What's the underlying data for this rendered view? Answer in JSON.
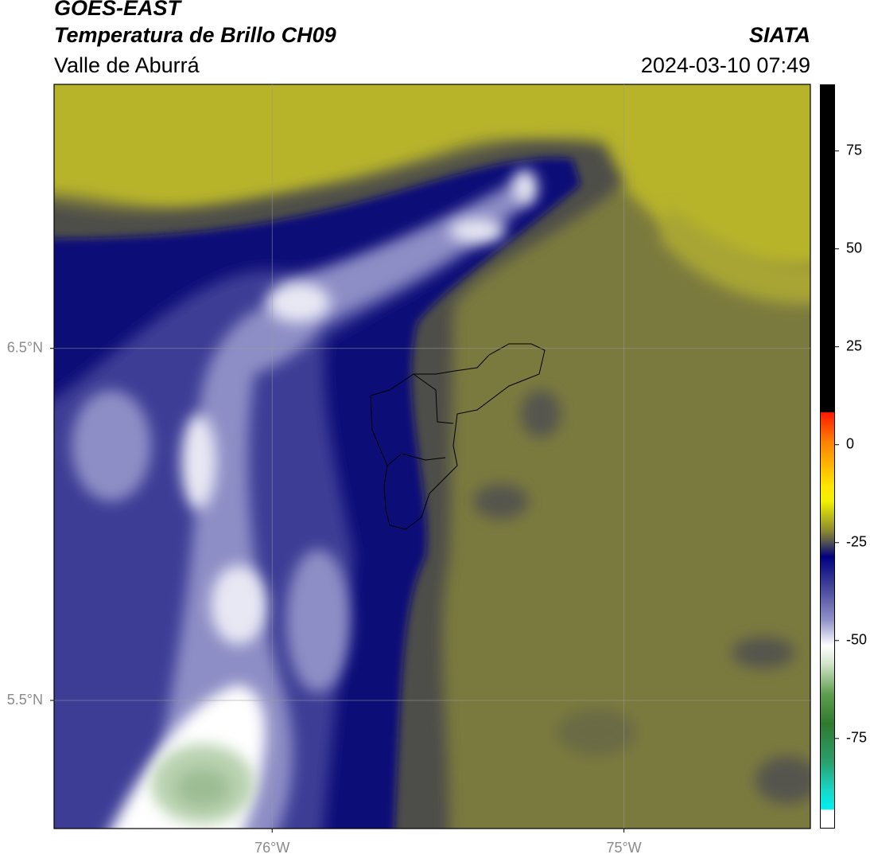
{
  "header": {
    "title": "GOES-EAST",
    "subtitle": "Temperatura de Brillo CH09",
    "region": "Valle de Aburrá",
    "agency": "SIATA",
    "timestamp": "2024-03-10 07:49"
  },
  "map": {
    "xlim": [
      -76.62,
      -74.47
    ],
    "ylim": [
      5.136,
      7.25
    ],
    "xticks": [
      {
        "value": -76,
        "label": "76°W"
      },
      {
        "value": -75,
        "label": "75°W"
      }
    ],
    "yticks": [
      {
        "value": 6.5,
        "label": "6.5°N"
      },
      {
        "value": 5.5,
        "label": "5.5°N"
      }
    ],
    "grid": true
  },
  "colorbar": {
    "lim": [
      -98,
      92
    ],
    "ticks": [
      75,
      50,
      25,
      0,
      -25,
      -50,
      -75
    ]
  }
}
